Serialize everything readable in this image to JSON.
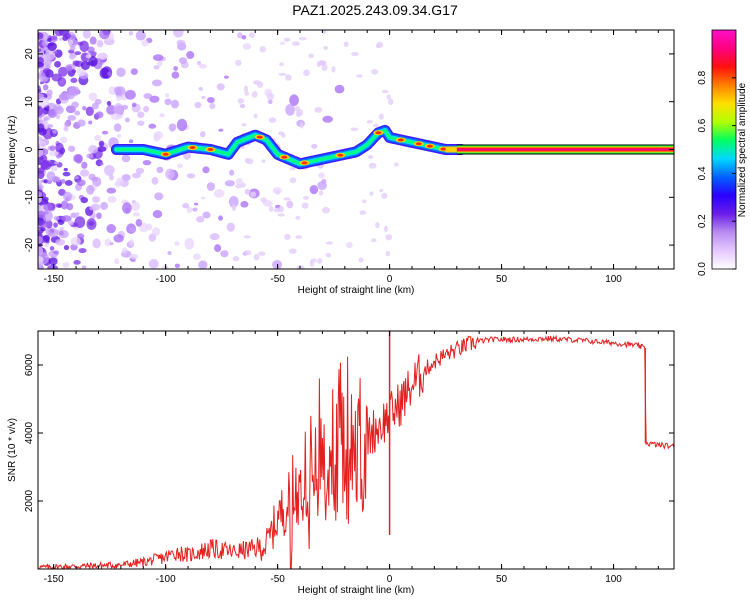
{
  "title": "PAZ1.2025.243.09.34.G17",
  "chart_data": [
    {
      "type": "heatmap",
      "name": "spectrogram",
      "xlabel": "Height of straight line (km)",
      "ylabel": "Frequency (Hz)",
      "xlim": [
        -157,
        127
      ],
      "ylim": [
        -25,
        25
      ],
      "xticks": [
        -150,
        -100,
        -50,
        0,
        50,
        100
      ],
      "yticks": [
        -20,
        -10,
        0,
        10,
        20
      ],
      "grid": false,
      "colorbar": {
        "label": "Normalized spectral amplitude",
        "range": [
          0,
          1
        ],
        "ticks": [
          "0.0",
          "0.2",
          "0.4",
          "0.6",
          "0.8"
        ],
        "colors": [
          "#ffffff",
          "#e6c8ff",
          "#b98cf0",
          "#6a1ee8",
          "#2a00ff",
          "#0060ff",
          "#00d8ff",
          "#00ff60",
          "#b0ff00",
          "#ffe000",
          "#ff8000",
          "#ff1010",
          "#ff0080",
          "#ff10c8"
        ]
      },
      "ridge": {
        "x": [
          -122,
          -110,
          -100,
          -90,
          -80,
          -72,
          -68,
          -60,
          -55,
          -50,
          -45,
          -40,
          -35,
          -30,
          -25,
          -20,
          -15,
          -10,
          -5,
          -2,
          0,
          5,
          10,
          15,
          20,
          25,
          30,
          50,
          80,
          127
        ],
        "y": [
          0,
          0,
          -1,
          0.5,
          0,
          -1,
          1.5,
          3,
          2,
          -1,
          -2,
          -3,
          -2.5,
          -2,
          -1.5,
          -1,
          -0.5,
          1,
          3.5,
          4,
          2.5,
          2,
          1.5,
          1,
          0.5,
          0,
          0,
          0,
          0,
          0
        ],
        "steady_line": {
          "x": [
            30,
            127
          ],
          "y": 0
        }
      }
    },
    {
      "type": "line",
      "name": "snr",
      "xlabel": "Height of straight line (km)",
      "ylabel": "SNR (10 * v/v)",
      "xlim": [
        -157,
        127
      ],
      "ylim": [
        0,
        7000
      ],
      "xticks": [
        -150,
        -100,
        -50,
        0,
        50,
        100
      ],
      "yticks": [
        2000,
        4000,
        6000
      ],
      "grid": false,
      "series": [
        {
          "name": "SNR",
          "color": "#e32020",
          "x": [
            -157,
            -140,
            -120,
            -110,
            -100,
            -95,
            -90,
            -80,
            -70,
            -60,
            -55,
            -50,
            -45,
            -40,
            -35,
            -30,
            -25,
            -20,
            -15,
            -10,
            -5,
            0,
            5,
            10,
            15,
            20,
            25,
            30,
            35,
            40,
            45,
            50,
            60,
            70,
            80,
            90,
            100,
            110,
            114,
            114.5,
            120,
            127
          ],
          "y": [
            50,
            80,
            120,
            200,
            350,
            500,
            400,
            600,
            500,
            600,
            700,
            1500,
            2000,
            2400,
            2800,
            3100,
            3300,
            3500,
            3700,
            3900,
            4200,
            4500,
            4900,
            5400,
            5800,
            6100,
            6300,
            6450,
            6600,
            6700,
            6750,
            6750,
            6750,
            6780,
            6750,
            6700,
            6650,
            6580,
            6500,
            3700,
            3650,
            3600
          ],
          "spike": {
            "x": 0,
            "y_max": 7000,
            "y_min": 1000
          }
        }
      ]
    }
  ]
}
